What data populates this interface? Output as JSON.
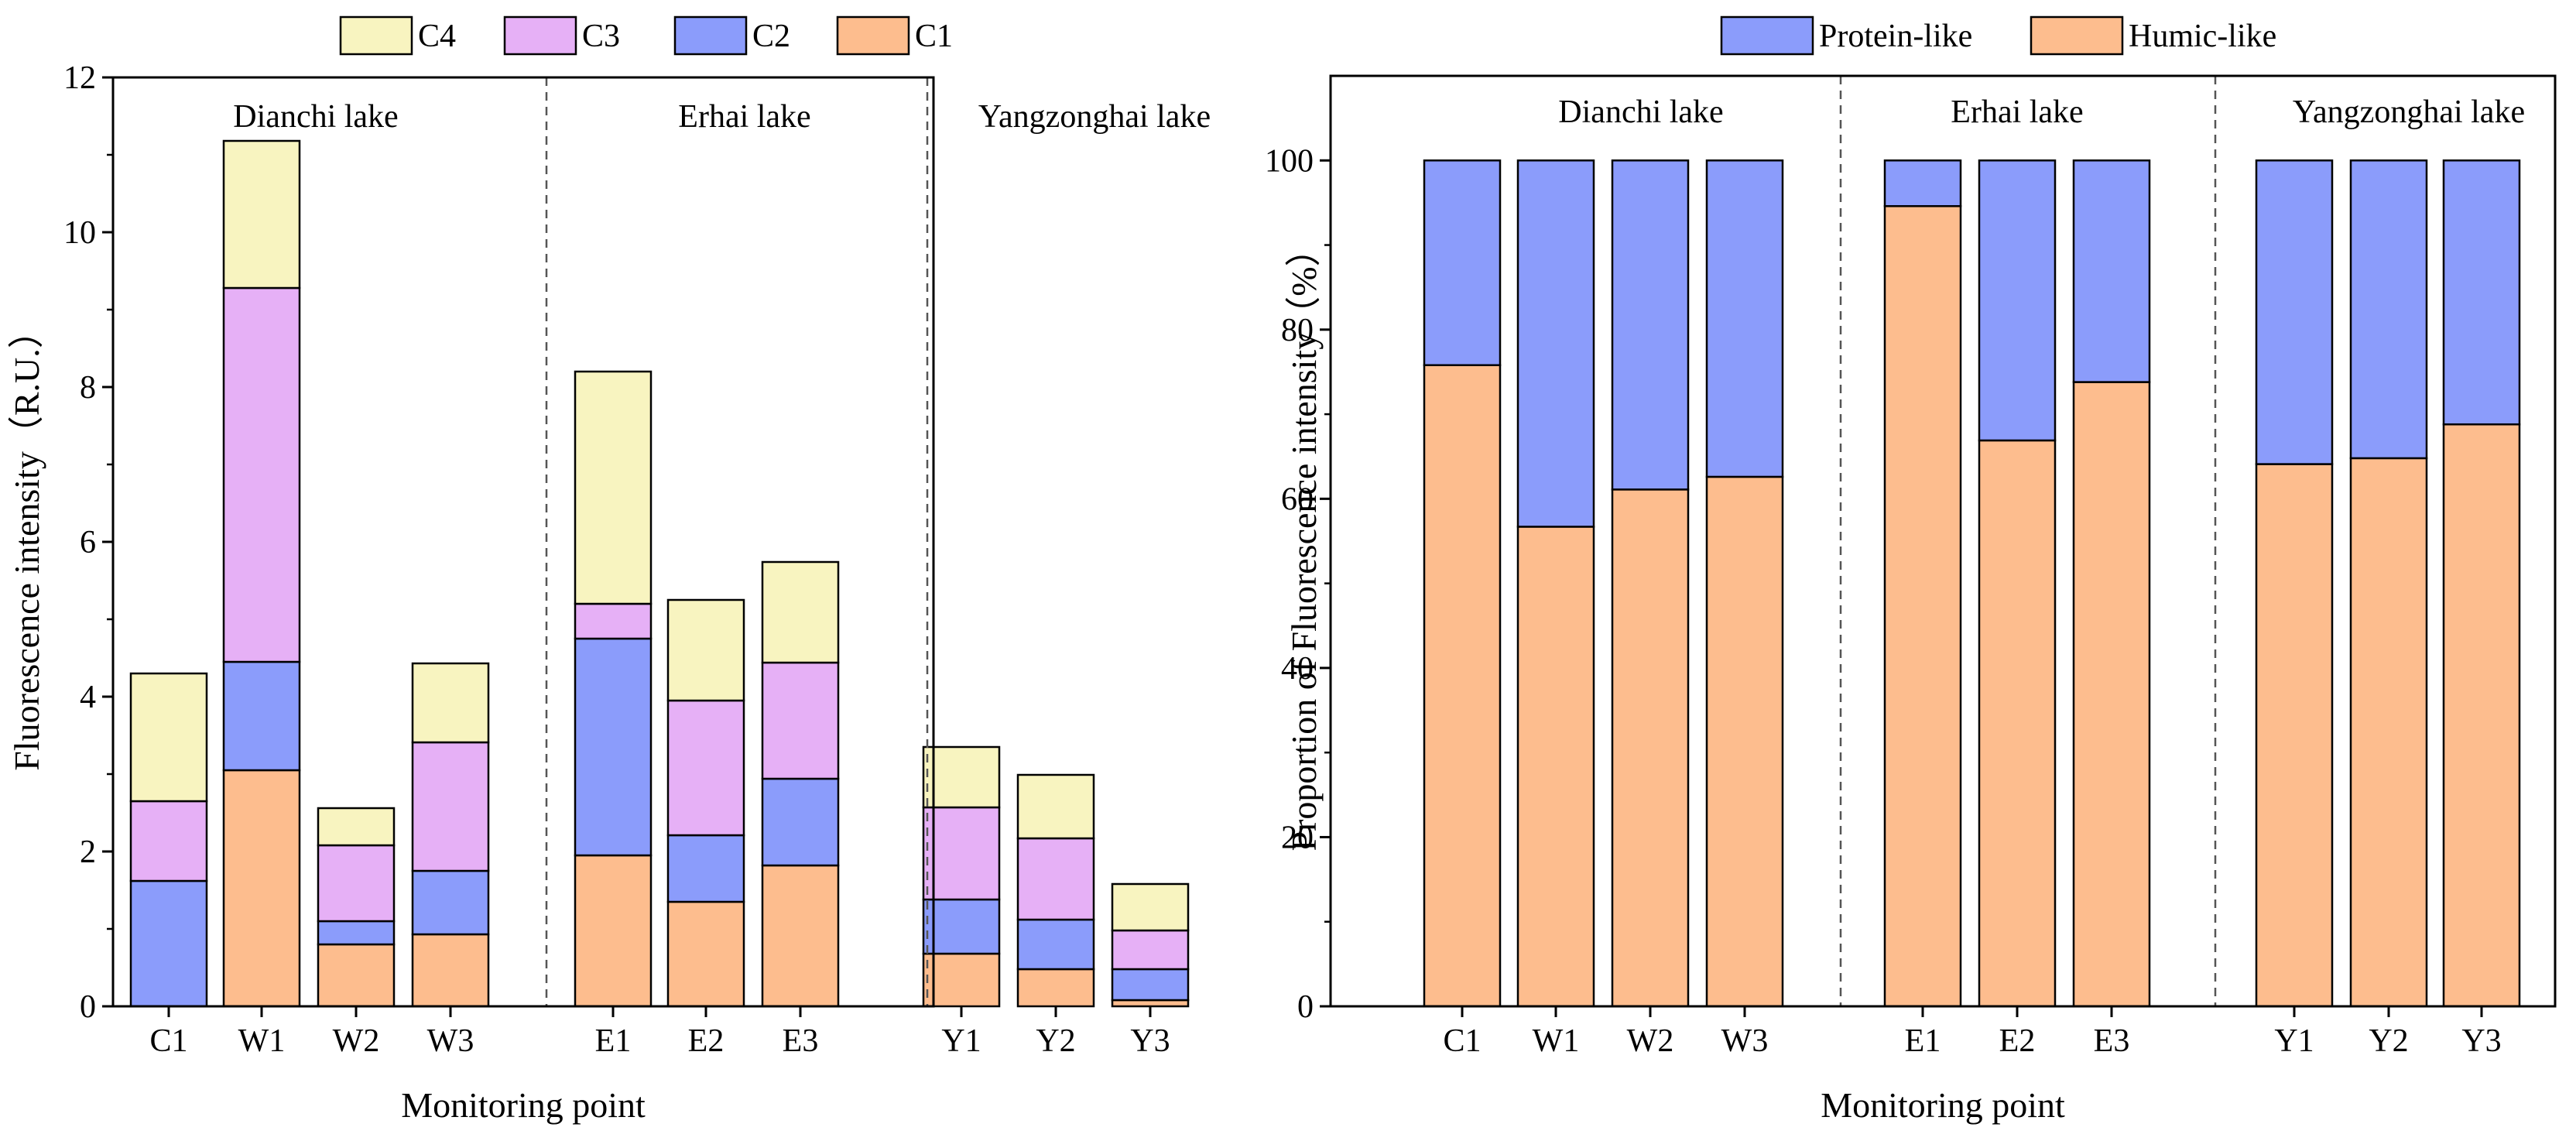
{
  "chart_data": [
    {
      "type": "bar",
      "stacked": true,
      "title": "",
      "xlabel": "Monitoring point",
      "ylabel": "Fluorescence intensity（R.U.）",
      "ylim": [
        0,
        12
      ],
      "yticks": [
        0,
        2,
        4,
        6,
        8,
        10,
        12
      ],
      "yticklabels": [
        "0",
        "2",
        "4",
        "6",
        "8",
        "10",
        "12"
      ],
      "categories": [
        "C1",
        "W1",
        "W2",
        "W3",
        "E1",
        "E2",
        "E3",
        "Y1",
        "Y2",
        "Y3"
      ],
      "groups": [
        {
          "label": "Dianchi lake",
          "members": [
            "C1",
            "W1",
            "W2",
            "W3"
          ]
        },
        {
          "label": "Erhai lake",
          "members": [
            "E1",
            "E2",
            "E3"
          ]
        },
        {
          "label": "Yangzonghai lake",
          "members": [
            "Y1",
            "Y2",
            "Y3"
          ]
        }
      ],
      "legend_position": "top",
      "legend_order": [
        "C4",
        "C3",
        "C2",
        "C1"
      ],
      "series": [
        {
          "name": "C1",
          "color": "#FDBD8E",
          "values": [
            0.0,
            3.05,
            0.8,
            0.93,
            1.95,
            1.35,
            1.82,
            0.68,
            0.48,
            0.08
          ]
        },
        {
          "name": "C2",
          "color": "#8B9CFB",
          "values": [
            1.62,
            1.4,
            0.3,
            0.82,
            2.8,
            0.86,
            1.12,
            0.7,
            0.64,
            0.4
          ]
        },
        {
          "name": "C3",
          "color": "#E6B0F6",
          "values": [
            1.03,
            4.83,
            0.98,
            1.66,
            0.45,
            1.74,
            1.5,
            1.19,
            1.05,
            0.5
          ]
        },
        {
          "name": "C4",
          "color": "#F8F4C0",
          "values": [
            1.65,
            1.9,
            0.48,
            1.02,
            3.0,
            1.3,
            1.3,
            0.78,
            0.82,
            0.6
          ]
        }
      ]
    },
    {
      "type": "bar",
      "stacked": true,
      "title": "",
      "xlabel": "Monitoring point",
      "ylabel": "Proportion of  Fluorescence intensity（%）",
      "ylim": [
        0,
        110
      ],
      "yticks": [
        0,
        20,
        40,
        60,
        80,
        100
      ],
      "yticklabels": [
        "0",
        "20",
        "40",
        "60",
        "80",
        "100"
      ],
      "categories": [
        "C1",
        "W1",
        "W2",
        "W3",
        "E1",
        "E2",
        "E3",
        "Y1",
        "Y2",
        "Y3"
      ],
      "groups": [
        {
          "label": "Dianchi lake",
          "members": [
            "C1",
            "W1",
            "W2",
            "W3"
          ]
        },
        {
          "label": "Erhai lake",
          "members": [
            "E1",
            "E2",
            "E3"
          ]
        },
        {
          "label": "Yangzonghai lake",
          "members": [
            "Y1",
            "Y2",
            "Y3"
          ]
        }
      ],
      "legend_position": "top",
      "legend_order": [
        "Protein-like",
        "Humic-like"
      ],
      "series": [
        {
          "name": "Humic-like",
          "color": "#FDBD8E",
          "values": [
            75.8,
            56.7,
            61.1,
            62.6,
            94.6,
            66.9,
            73.8,
            64.1,
            64.8,
            68.8
          ]
        },
        {
          "name": "Protein-like",
          "color": "#8B9CFB",
          "values": [
            24.2,
            43.3,
            38.9,
            37.4,
            5.4,
            33.1,
            26.2,
            35.9,
            35.2,
            31.2
          ]
        }
      ]
    }
  ]
}
